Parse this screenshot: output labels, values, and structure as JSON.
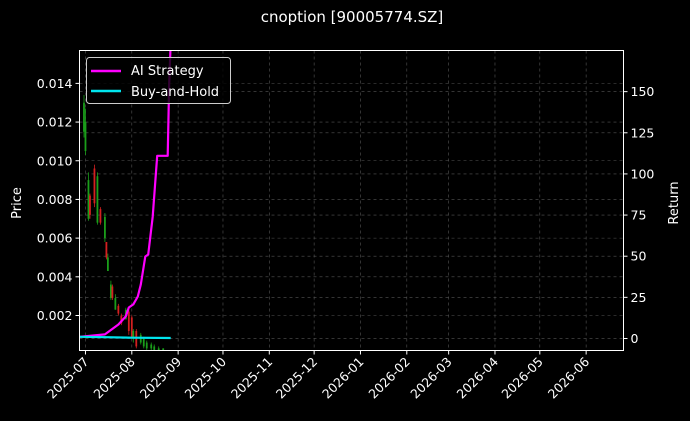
{
  "chart_data": {
    "type": "candlestick+line",
    "title": "cnoption [90005774.SZ]",
    "ylabel": "Price",
    "y2label": "Return",
    "xlim": [
      "2025-06-27",
      "2026-06-26"
    ],
    "ylim": [
      0.00019,
      0.0157
    ],
    "y2lim": [
      -7.3,
      175
    ],
    "grid": true,
    "legend_placement": "top-left",
    "x_ticks": [
      "2025-07",
      "2025-08",
      "2025-09",
      "2025-10",
      "2025-11",
      "2025-12",
      "2026-01",
      "2026-02",
      "2026-03",
      "2026-04",
      "2026-05",
      "2026-06"
    ],
    "y_ticks": [
      "0.002",
      "0.004",
      "0.006",
      "0.008",
      "0.010",
      "0.012",
      "0.014"
    ],
    "y2_ticks": [
      "0",
      "25",
      "50",
      "75",
      "100",
      "125",
      "150"
    ],
    "colors": {
      "up": "#1a9e1a",
      "down": "#d42020",
      "ai_strategy": "#ff00ff",
      "buy_and_hold": "#00e5ee",
      "grid": "#555555",
      "background": "#000000"
    },
    "candles": [
      {
        "date": "2025-06-30",
        "o": 0.0115,
        "h": 0.0134,
        "l": 0.0112,
        "c": 0.013
      },
      {
        "date": "2025-07-01",
        "o": 0.0105,
        "h": 0.0127,
        "l": 0.0103,
        "c": 0.012
      },
      {
        "date": "2025-07-03",
        "o": 0.007,
        "h": 0.0094,
        "l": 0.0069,
        "c": 0.009
      },
      {
        "date": "2025-07-04",
        "o": 0.0082,
        "h": 0.0083,
        "l": 0.007,
        "c": 0.0072
      },
      {
        "date": "2025-07-07",
        "o": 0.0096,
        "h": 0.0098,
        "l": 0.0076,
        "c": 0.0078
      },
      {
        "date": "2025-07-09",
        "o": 0.0068,
        "h": 0.0094,
        "l": 0.0067,
        "c": 0.0092
      },
      {
        "date": "2025-07-11",
        "o": 0.0075,
        "h": 0.0076,
        "l": 0.0067,
        "c": 0.0068
      },
      {
        "date": "2025-07-14",
        "o": 0.006,
        "h": 0.0073,
        "l": 0.0058,
        "c": 0.0071
      },
      {
        "date": "2025-07-15",
        "o": 0.0058,
        "h": 0.0058,
        "l": 0.0049,
        "c": 0.005
      },
      {
        "date": "2025-07-16",
        "o": 0.0043,
        "h": 0.0052,
        "l": 0.0043,
        "c": 0.005
      },
      {
        "date": "2025-07-18",
        "o": 0.0029,
        "h": 0.0038,
        "l": 0.0028,
        "c": 0.0036
      },
      {
        "date": "2025-07-19",
        "o": 0.0035,
        "h": 0.0036,
        "l": 0.0028,
        "c": 0.0029
      },
      {
        "date": "2025-07-21",
        "o": 0.0023,
        "h": 0.0031,
        "l": 0.0023,
        "c": 0.0029
      },
      {
        "date": "2025-07-23",
        "o": 0.0025,
        "h": 0.0026,
        "l": 0.002,
        "c": 0.0021
      },
      {
        "date": "2025-07-25",
        "o": 0.002,
        "h": 0.0021,
        "l": 0.0015,
        "c": 0.0016
      },
      {
        "date": "2025-07-28",
        "o": 0.0018,
        "h": 0.0024,
        "l": 0.0018,
        "c": 0.0023
      },
      {
        "date": "2025-07-30",
        "o": 0.0022,
        "h": 0.0023,
        "l": 0.001,
        "c": 0.0012
      },
      {
        "date": "2025-08-01",
        "o": 0.0019,
        "h": 0.002,
        "l": 0.0008,
        "c": 0.0009
      },
      {
        "date": "2025-08-02",
        "o": 0.0008,
        "h": 0.0013,
        "l": 0.0006,
        "c": 0.0012
      },
      {
        "date": "2025-08-04",
        "o": 0.0012,
        "h": 0.0013,
        "l": 0.0003,
        "c": 0.0004
      },
      {
        "date": "2025-08-07",
        "o": 0.0006,
        "h": 0.0011,
        "l": 0.0005,
        "c": 0.001
      },
      {
        "date": "2025-08-09",
        "o": 0.0004,
        "h": 0.0009,
        "l": 0.0003,
        "c": 0.0008
      },
      {
        "date": "2025-08-11",
        "o": 0.0003,
        "h": 0.0007,
        "l": 0.0002,
        "c": 0.0006
      },
      {
        "date": "2025-08-14",
        "o": 0.0003,
        "h": 0.0006,
        "l": 0.0002,
        "c": 0.0005
      },
      {
        "date": "2025-08-16",
        "o": 0.0002,
        "h": 0.0005,
        "l": 0.0002,
        "c": 0.0004
      },
      {
        "date": "2025-08-19",
        "o": 0.0002,
        "h": 0.0004,
        "l": 0.0002,
        "c": 0.0003
      },
      {
        "date": "2025-08-22",
        "o": 0.0002,
        "h": 0.0003,
        "l": 0.0002,
        "c": 0.0003
      }
    ],
    "series": [
      {
        "name": "AI Strategy",
        "axis": "right",
        "points": [
          [
            "2025-06-27",
            1.0
          ],
          [
            "2025-07-14",
            2.5
          ],
          [
            "2025-07-23",
            8.5
          ],
          [
            "2025-07-28",
            13.4
          ],
          [
            "2025-07-30",
            18.8
          ],
          [
            "2025-08-02",
            20.7
          ],
          [
            "2025-08-05",
            25.5
          ],
          [
            "2025-08-07",
            32.8
          ],
          [
            "2025-08-10",
            49.8
          ],
          [
            "2025-08-12",
            51
          ],
          [
            "2025-08-15",
            74
          ],
          [
            "2025-08-18",
            111
          ],
          [
            "2025-08-25",
            111
          ],
          [
            "2025-08-26",
            155.5
          ],
          [
            "2025-08-27",
            180
          ]
        ]
      },
      {
        "name": "Buy-and-Hold",
        "axis": "right",
        "points": [
          [
            "2025-06-27",
            1.0
          ],
          [
            "2025-07-15",
            0.8
          ],
          [
            "2025-08-01",
            0.5
          ],
          [
            "2025-08-27",
            0.3
          ]
        ]
      }
    ]
  }
}
